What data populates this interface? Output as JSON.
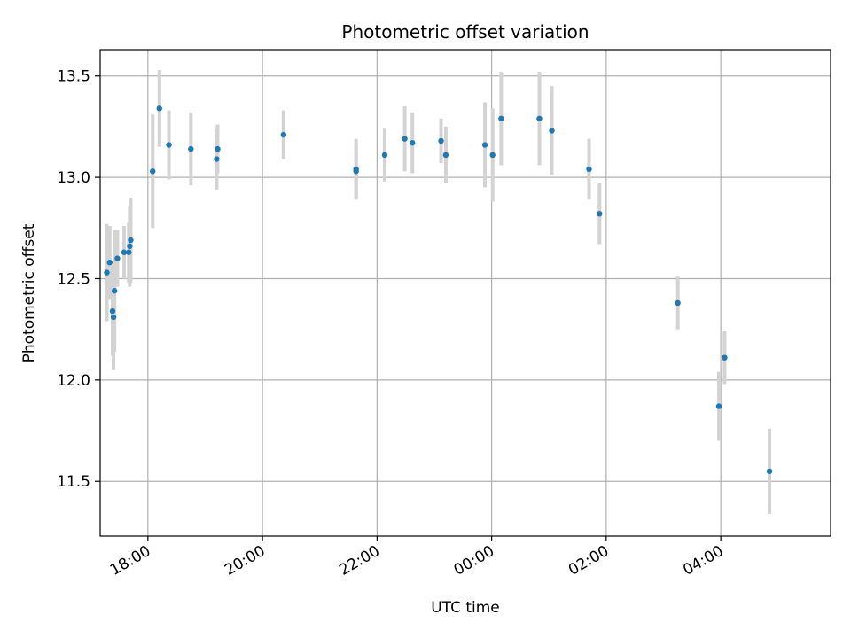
{
  "chart_data": {
    "type": "scatter",
    "title": "Photometric offset variation",
    "xlabel": "UTC time",
    "ylabel": "Photometric offset",
    "x_unit": "UTC time (base day 00:00; times after midnight fall on the next day)",
    "xlim": [
      "17:10",
      "05:55"
    ],
    "ylim": [
      11.23,
      13.63
    ],
    "x_ticks": [
      "18:00",
      "20:00",
      "22:00",
      "00:00",
      "02:00",
      "04:00"
    ],
    "y_ticks": [
      "11.5",
      "12.0",
      "12.5",
      "13.0",
      "13.5"
    ],
    "grid": true,
    "colors": {
      "marker": "#1f77b4",
      "errorbar": "#d3d3d3",
      "grid": "#b0b0b0"
    },
    "points": [
      {
        "time": "17:17",
        "y": 12.53,
        "err": 0.24
      },
      {
        "time": "17:20",
        "y": 12.58,
        "err": 0.18
      },
      {
        "time": "17:23",
        "y": 12.34,
        "err": 0.22
      },
      {
        "time": "17:24",
        "y": 12.31,
        "err": 0.26
      },
      {
        "time": "17:25",
        "y": 12.44,
        "err": 0.3
      },
      {
        "time": "17:28",
        "y": 12.6,
        "err": 0.14
      },
      {
        "time": "17:35",
        "y": 12.63,
        "err": 0.13
      },
      {
        "time": "17:40",
        "y": 12.63,
        "err": 0.15
      },
      {
        "time": "17:41",
        "y": 12.66,
        "err": 0.2
      },
      {
        "time": "17:42",
        "y": 12.69,
        "err": 0.21
      },
      {
        "time": "18:05",
        "y": 13.03,
        "err": 0.28
      },
      {
        "time": "18:12",
        "y": 13.34,
        "err": 0.19
      },
      {
        "time": "18:22",
        "y": 13.16,
        "err": 0.17
      },
      {
        "time": "18:45",
        "y": 13.14,
        "err": 0.18
      },
      {
        "time": "19:12",
        "y": 13.09,
        "err": 0.15
      },
      {
        "time": "19:13",
        "y": 13.14,
        "err": 0.12
      },
      {
        "time": "20:22",
        "y": 13.21,
        "err": 0.12
      },
      {
        "time": "21:38",
        "y": 13.04,
        "err": 0.15
      },
      {
        "time": "21:38",
        "y": 13.03,
        "err": 0.13
      },
      {
        "time": "22:08",
        "y": 13.11,
        "err": 0.13
      },
      {
        "time": "22:29",
        "y": 13.19,
        "err": 0.16
      },
      {
        "time": "22:37",
        "y": 13.17,
        "err": 0.15
      },
      {
        "time": "23:07",
        "y": 13.18,
        "err": 0.11
      },
      {
        "time": "23:12",
        "y": 13.11,
        "err": 0.14
      },
      {
        "time": "23:53",
        "y": 13.16,
        "err": 0.21
      },
      {
        "time": "00:01",
        "y": 13.11,
        "err": 0.23
      },
      {
        "time": "00:10",
        "y": 13.29,
        "err": 0.23
      },
      {
        "time": "00:50",
        "y": 13.29,
        "err": 0.23
      },
      {
        "time": "01:03",
        "y": 13.23,
        "err": 0.22
      },
      {
        "time": "01:42",
        "y": 13.04,
        "err": 0.15
      },
      {
        "time": "01:53",
        "y": 12.82,
        "err": 0.15
      },
      {
        "time": "03:15",
        "y": 12.38,
        "err": 0.13
      },
      {
        "time": "03:58",
        "y": 11.87,
        "err": 0.17
      },
      {
        "time": "04:04",
        "y": 12.11,
        "err": 0.13
      },
      {
        "time": "04:51",
        "y": 11.55,
        "err": 0.21
      }
    ]
  }
}
